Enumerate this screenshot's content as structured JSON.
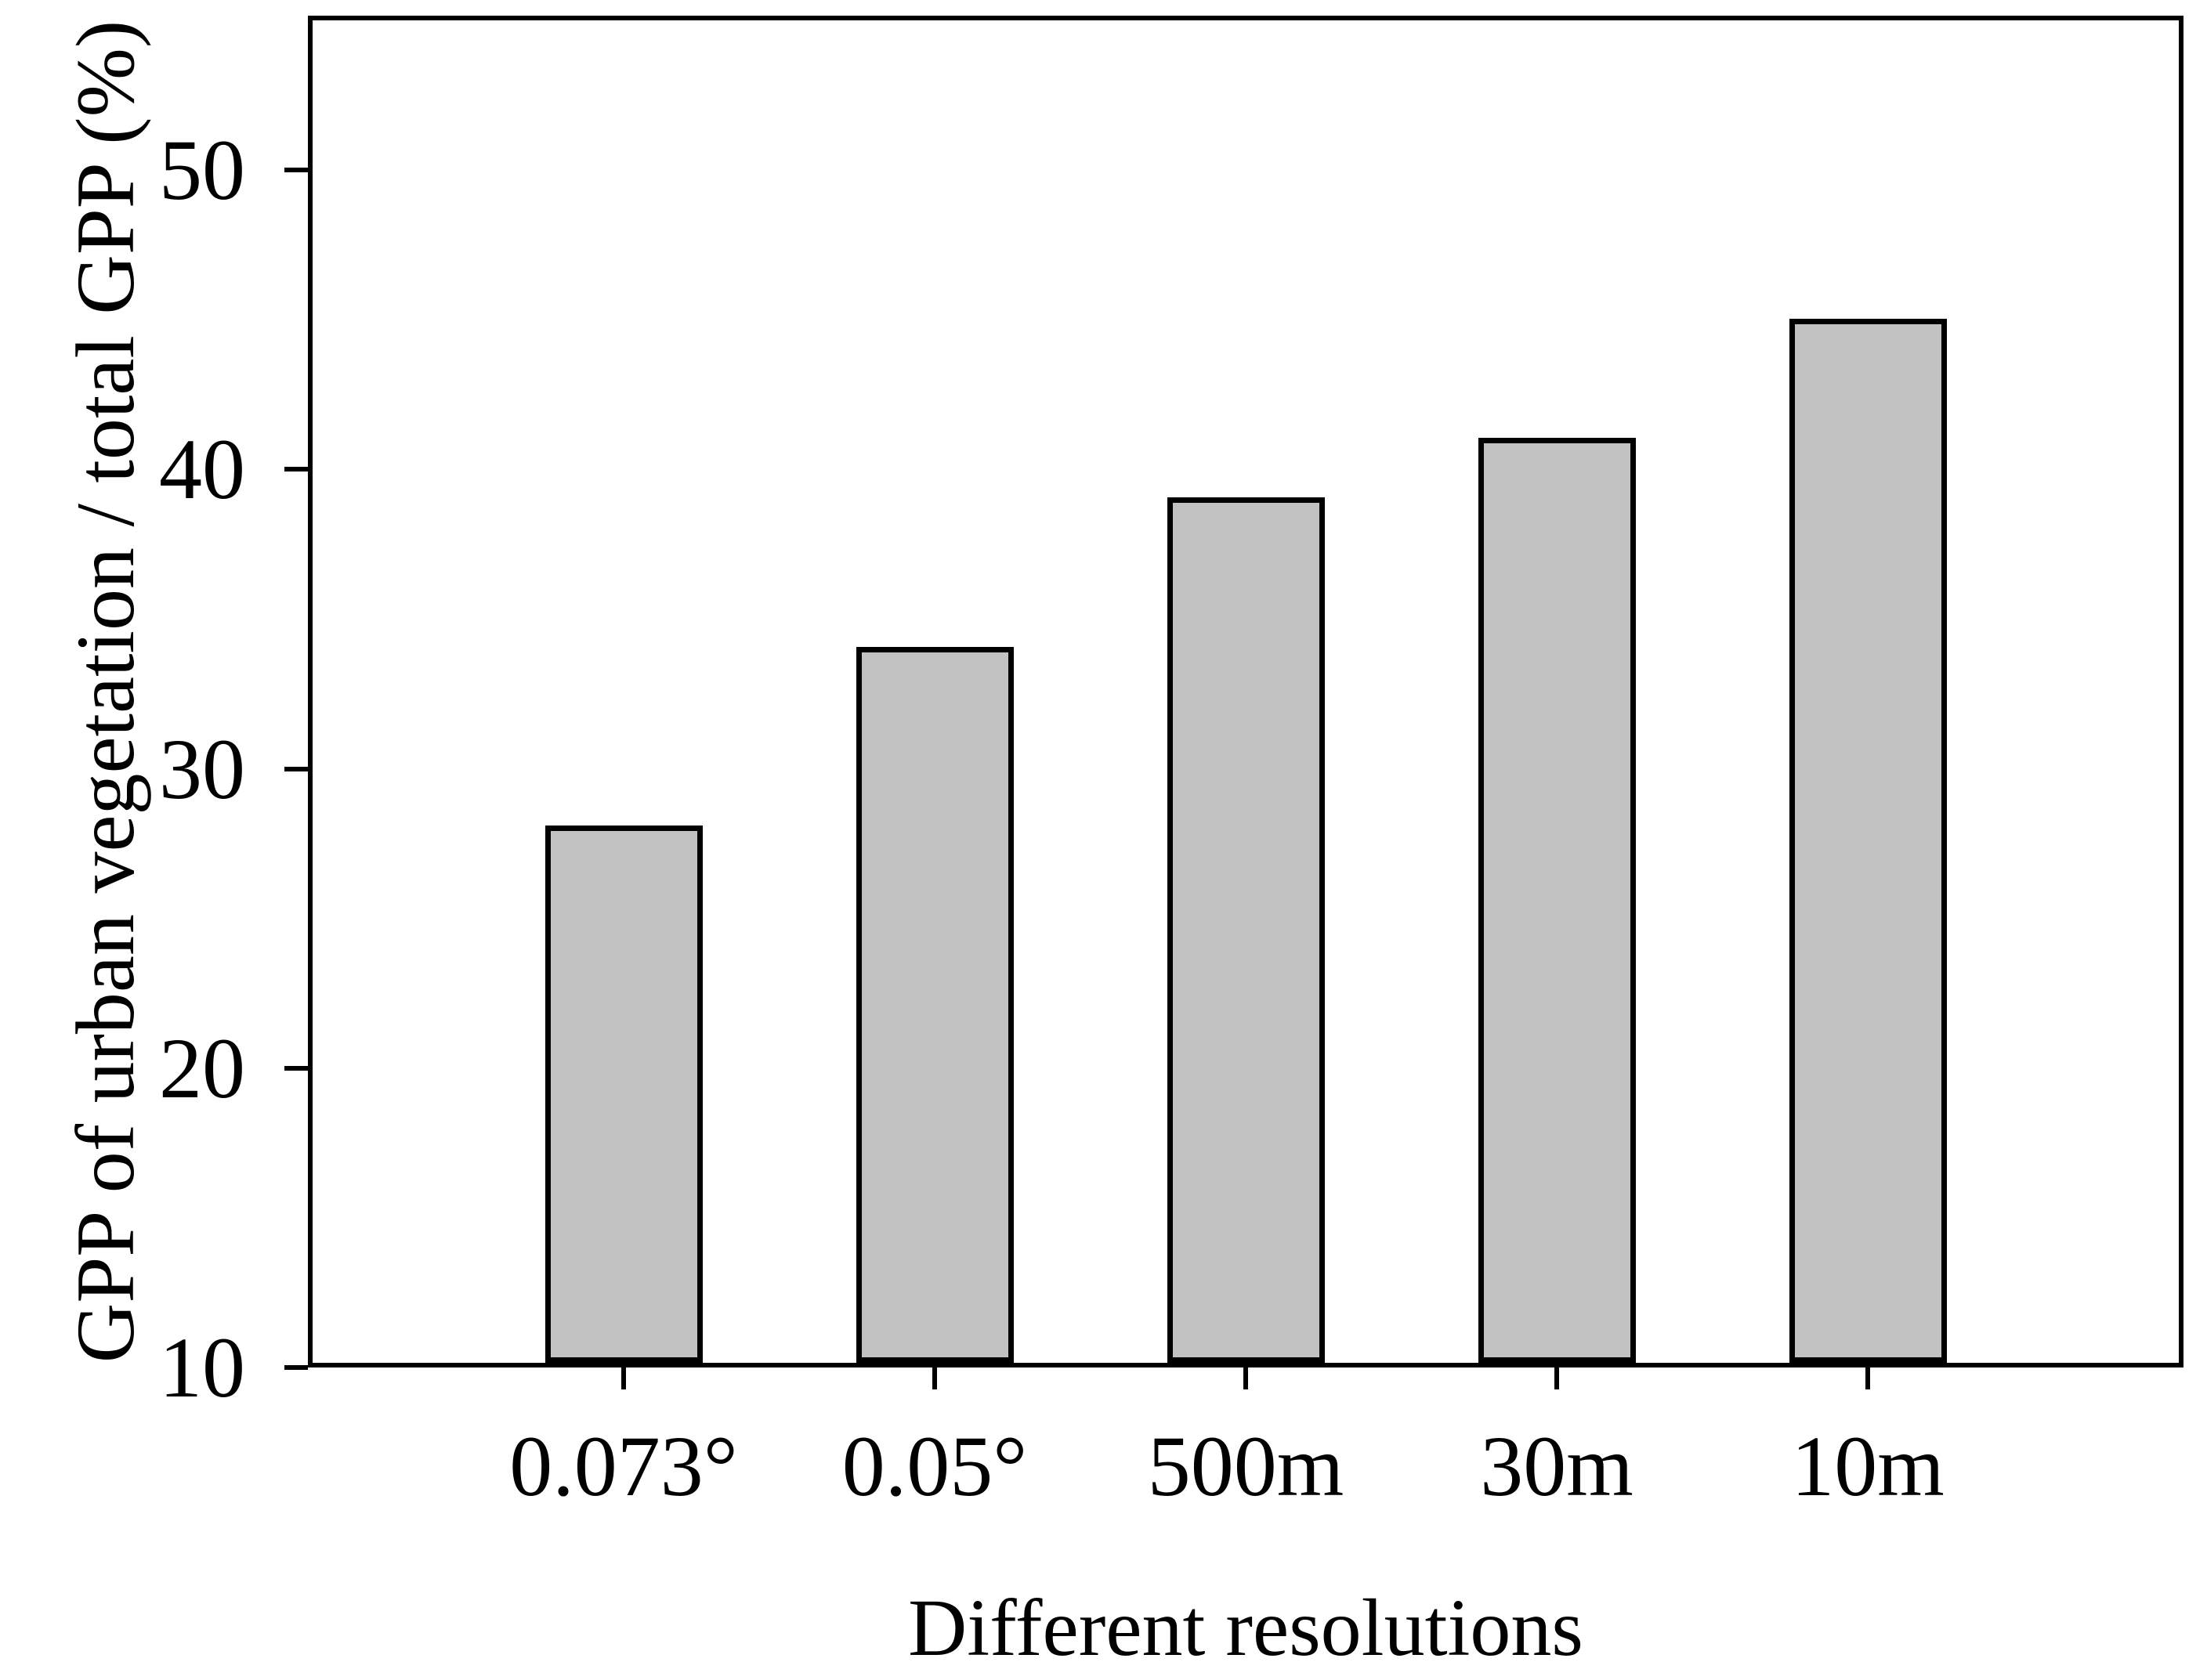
{
  "chart_data": {
    "type": "bar",
    "categories": [
      "0.073°",
      "0.05°",
      "500m",
      "30m",
      "10m"
    ],
    "values": [
      28,
      34,
      39,
      41,
      45
    ],
    "xlabel": "Different resolutions",
    "ylabel": "GPP of urban vegetation / total GPP (%)",
    "yticks": [
      10,
      20,
      30,
      40,
      50
    ],
    "ylim": [
      10,
      55
    ],
    "grid": false,
    "legend_position": "none",
    "colors": {
      "bar_fill": "#C2C2C2",
      "bar_stroke": "#000000",
      "axis": "#000000",
      "text": "#000000",
      "background": "#FFFFFF"
    }
  }
}
